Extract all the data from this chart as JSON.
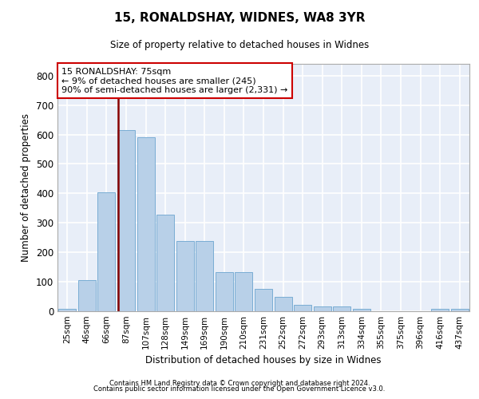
{
  "title1": "15, RONALDSHAY, WIDNES, WA8 3YR",
  "title2": "Size of property relative to detached houses in Widnes",
  "xlabel": "Distribution of detached houses by size in Widnes",
  "ylabel": "Number of detached properties",
  "footnote1": "Contains HM Land Registry data © Crown copyright and database right 2024.",
  "footnote2": "Contains public sector information licensed under the Open Government Licence v3.0.",
  "categories": [
    "25sqm",
    "46sqm",
    "66sqm",
    "87sqm",
    "107sqm",
    "128sqm",
    "149sqm",
    "169sqm",
    "190sqm",
    "210sqm",
    "231sqm",
    "252sqm",
    "272sqm",
    "293sqm",
    "313sqm",
    "334sqm",
    "355sqm",
    "375sqm",
    "396sqm",
    "416sqm",
    "437sqm"
  ],
  "values": [
    8,
    105,
    403,
    615,
    590,
    328,
    238,
    238,
    133,
    133,
    75,
    50,
    22,
    15,
    15,
    8,
    0,
    0,
    0,
    8,
    8
  ],
  "bar_color": "#b8d0e8",
  "bar_edge_color": "#7aadd4",
  "background_color": "#e8eef8",
  "grid_color": "#ffffff",
  "redline_index": 2.575,
  "annotation_text": "15 RONALDSHAY: 75sqm\n← 9% of detached houses are smaller (245)\n90% of semi-detached houses are larger (2,331) →",
  "annotation_box_color": "#ffffff",
  "annotation_box_edge": "#cc0000",
  "redline_color": "#880000",
  "ylim": [
    0,
    840
  ],
  "yticks": [
    0,
    100,
    200,
    300,
    400,
    500,
    600,
    700,
    800
  ]
}
